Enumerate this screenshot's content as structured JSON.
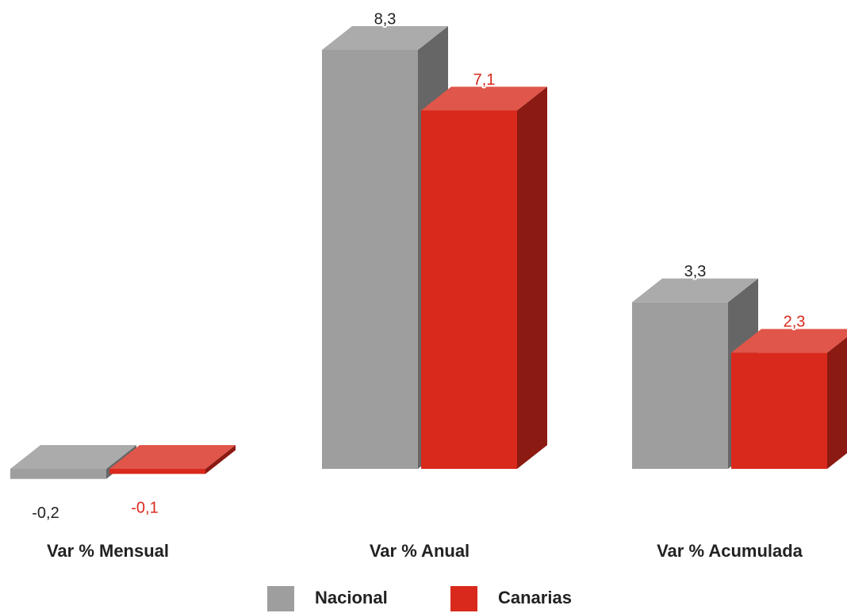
{
  "chart_data": {
    "type": "bar3d",
    "categories": [
      "Var % Mensual",
      "Var % Anual",
      "Var % Acumulada"
    ],
    "series": [
      {
        "name": "Nacional",
        "color": "#9e9e9e",
        "values": [
          -0.2,
          8.3,
          3.3
        ],
        "value_labels": [
          "-0,2",
          "8,3",
          "3,3"
        ]
      },
      {
        "name": "Canarias",
        "color": "#d9291c",
        "values": [
          -0.1,
          7.1,
          2.3
        ],
        "value_labels": [
          "-0,1",
          "7,1",
          "2,3"
        ]
      }
    ]
  }
}
